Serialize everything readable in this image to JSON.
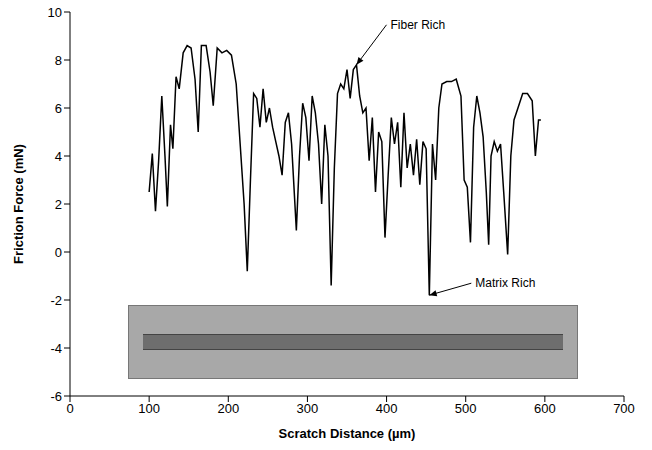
{
  "chart_data": {
    "type": "line",
    "x_label": "Scratch Distance (µm)",
    "y_label": "Friction Force (mN)",
    "xlim": [
      0,
      700
    ],
    "xticks": [
      0,
      100,
      200,
      300,
      400,
      500,
      600,
      700
    ],
    "ylim": [
      -6,
      10
    ],
    "yticks": [
      -6,
      -4,
      -2,
      0,
      2,
      4,
      6,
      8,
      10
    ],
    "grid": false,
    "color": "#000000",
    "x": [
      100,
      104,
      108,
      112,
      116,
      120,
      123,
      127,
      130,
      134,
      138,
      143,
      148,
      153,
      158,
      162,
      166,
      172,
      177,
      181,
      186,
      192,
      198,
      204,
      210,
      215,
      220,
      224,
      228,
      232,
      236,
      240,
      244,
      248,
      252,
      256,
      260,
      264,
      268,
      272,
      276,
      280,
      286,
      290,
      294,
      298,
      302,
      306,
      310,
      314,
      318,
      322,
      326,
      330,
      334,
      338,
      342,
      346,
      350,
      354,
      358,
      362,
      366,
      370,
      374,
      378,
      382,
      386,
      390,
      394,
      398,
      402,
      406,
      410,
      414,
      418,
      422,
      426,
      430,
      434,
      438,
      442,
      446,
      450,
      454,
      458,
      462,
      466,
      470,
      476,
      482,
      488,
      494,
      498,
      502,
      506,
      510,
      514,
      518,
      522,
      526,
      529,
      532,
      536,
      540,
      544,
      548,
      553,
      557,
      561,
      566,
      572,
      578,
      584,
      588,
      592,
      595
    ],
    "values": [
      2.5,
      4.1,
      1.7,
      3.8,
      6.5,
      4.0,
      1.9,
      5.3,
      4.3,
      7.3,
      6.8,
      8.3,
      8.6,
      8.5,
      7.2,
      5.0,
      8.6,
      8.6,
      7.5,
      6.1,
      8.5,
      8.3,
      8.4,
      8.2,
      7.0,
      4.5,
      2.0,
      -0.8,
      3.0,
      6.6,
      6.4,
      5.2,
      6.8,
      5.4,
      6.0,
      5.2,
      4.6,
      4.0,
      3.2,
      5.4,
      5.8,
      4.5,
      0.9,
      4.0,
      6.2,
      5.6,
      3.8,
      6.5,
      5.8,
      4.5,
      2.0,
      5.3,
      4.0,
      -1.4,
      3.5,
      6.6,
      7.0,
      6.8,
      7.6,
      6.4,
      7.6,
      7.8,
      6.5,
      5.8,
      6.0,
      3.8,
      5.6,
      2.5,
      5.0,
      4.6,
      0.6,
      3.2,
      5.6,
      4.5,
      5.4,
      2.7,
      5.8,
      3.5,
      4.5,
      3.2,
      4.7,
      2.8,
      4.6,
      4.3,
      -1.8,
      4.5,
      3.0,
      6.0,
      7.0,
      7.1,
      7.1,
      7.2,
      6.5,
      3.0,
      2.7,
      0.4,
      5.2,
      6.5,
      5.8,
      4.8,
      2.5,
      0.3,
      4.0,
      4.6,
      4.2,
      4.5,
      2.5,
      -0.1,
      4.0,
      5.5,
      6.0,
      6.6,
      6.6,
      6.3,
      4.0,
      5.5,
      5.5
    ],
    "annotations": [
      {
        "text": "Fiber Rich",
        "x": 362,
        "y": 7.8
      },
      {
        "text": "Matrix Rich",
        "x": 454,
        "y": -1.8
      }
    ]
  }
}
